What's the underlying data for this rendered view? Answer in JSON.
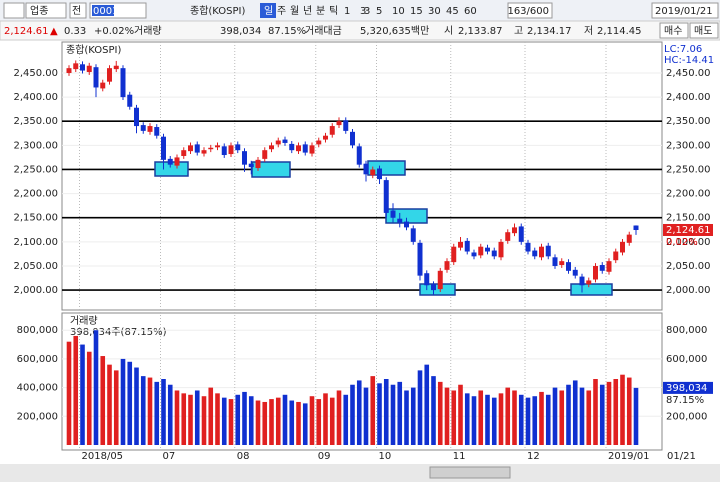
{
  "toolbar": {
    "market": "업종",
    "mode": "전",
    "code": "0001",
    "name": "종합(KOSPI)",
    "periods": [
      "일",
      "주",
      "월",
      "년",
      "분",
      "틱"
    ],
    "intervals": [
      "1",
      "3",
      "5",
      "10",
      "15",
      "30",
      "45",
      "60"
    ],
    "count": "3",
    "range": "163/600",
    "date": "2019/01/21"
  },
  "info": {
    "price": "2,124.61",
    "arrow": "▲",
    "change": "0.33",
    "change_pct": "+0.02%",
    "volume_label": "거래량",
    "volume": "398,034",
    "volume_pct": "87.15%",
    "amount_label": "거래대금",
    "amount": "5,320,635백만",
    "open_label": "시",
    "open": "2,133.87",
    "high_label": "고",
    "high": "2,134.17",
    "low_label": "저",
    "low": "2,114.45",
    "buy": "매수",
    "sell": "매도"
  },
  "chart_data": {
    "type": "candlestick",
    "title": "종합(KOSPI)",
    "lc": "LC:7.06",
    "hc": "HC:-14.41",
    "last_label": "2,124.61",
    "last_change": "0.02%",
    "categories": [
      null,
      null,
      "2018/05",
      null,
      null,
      null,
      null,
      null,
      null,
      null,
      null,
      null,
      null,
      null,
      "07",
      null,
      null,
      null,
      null,
      null,
      null,
      null,
      null,
      null,
      null,
      "08",
      null,
      null,
      null,
      null,
      null,
      null,
      null,
      null,
      null,
      null,
      null,
      "09",
      null,
      null,
      null,
      null,
      null,
      null,
      null,
      null,
      "10",
      null,
      null,
      null,
      null,
      null,
      null,
      null,
      null,
      null,
      null,
      "11",
      null,
      null,
      null,
      null,
      null,
      null,
      null,
      null,
      null,
      null,
      "12",
      null,
      null,
      null,
      null,
      null,
      null,
      null,
      null,
      null,
      null,
      null,
      "2019/01",
      null,
      null,
      null,
      null
    ],
    "open": [
      2450,
      2458,
      2468,
      2452,
      2462,
      2418,
      2432,
      2458,
      2460,
      2405,
      2378,
      2342,
      2328,
      2338,
      2318,
      2272,
      2258,
      2278,
      2288,
      2302,
      2283,
      2292,
      2296,
      2298,
      2282,
      2302,
      2288,
      2262,
      2253,
      2272,
      2292,
      2302,
      2312,
      2303,
      2288,
      2302,
      2283,
      2302,
      2312,
      2322,
      2342,
      2352,
      2328,
      2298,
      2262,
      2238,
      2252,
      2228,
      2165,
      2148,
      2142,
      2128,
      2098,
      2035,
      2012,
      2002,
      2042,
      2058,
      2088,
      2102,
      2078,
      2072,
      2088,
      2082,
      2068,
      2102,
      2118,
      2132,
      2098,
      2082,
      2068,
      2092,
      2068,
      2052,
      2058,
      2042,
      2028,
      2012,
      2022,
      2052,
      2038,
      2062,
      2078,
      2098,
      2133.87
    ],
    "high": [
      2466,
      2476,
      2474,
      2471,
      2468,
      2436,
      2466,
      2475,
      2466,
      2411,
      2384,
      2348,
      2346,
      2344,
      2324,
      2278,
      2281,
      2296,
      2306,
      2308,
      2296,
      2301,
      2306,
      2304,
      2306,
      2308,
      2294,
      2268,
      2276,
      2296,
      2306,
      2316,
      2318,
      2309,
      2306,
      2308,
      2306,
      2316,
      2326,
      2346,
      2358,
      2358,
      2334,
      2304,
      2268,
      2256,
      2258,
      2234,
      2180,
      2160,
      2150,
      2134,
      2104,
      2041,
      2018,
      2046,
      2066,
      2096,
      2110,
      2108,
      2084,
      2096,
      2094,
      2088,
      2106,
      2126,
      2138,
      2138,
      2104,
      2088,
      2096,
      2098,
      2074,
      2066,
      2064,
      2048,
      2034,
      2026,
      2056,
      2058,
      2066,
      2086,
      2106,
      2121,
      2134.17
    ],
    "low": [
      2444,
      2452,
      2449,
      2446,
      2400,
      2412,
      2426,
      2452,
      2394,
      2374,
      2325,
      2324,
      2322,
      2314,
      2250,
      2254,
      2252,
      2272,
      2282,
      2279,
      2277,
      2286,
      2290,
      2274,
      2276,
      2284,
      2245,
      2240,
      2247,
      2266,
      2286,
      2296,
      2299,
      2284,
      2282,
      2279,
      2277,
      2296,
      2306,
      2316,
      2336,
      2324,
      2294,
      2254,
      2225,
      2232,
      2220,
      2150,
      2140,
      2130,
      2124,
      2094,
      2020,
      2000,
      1990,
      1996,
      2036,
      2052,
      2082,
      2074,
      2064,
      2066,
      2074,
      2064,
      2062,
      2096,
      2112,
      2094,
      2074,
      2064,
      2062,
      2064,
      2044,
      2046,
      2034,
      2024,
      1995,
      2006,
      2016,
      2034,
      2032,
      2056,
      2072,
      2092,
      2114.45
    ],
    "close": [
      2460,
      2470,
      2455,
      2465,
      2420,
      2430,
      2460,
      2465,
      2400,
      2380,
      2340,
      2330,
      2340,
      2320,
      2270,
      2260,
      2275,
      2290,
      2300,
      2285,
      2290,
      2295,
      2300,
      2280,
      2300,
      2290,
      2260,
      2255,
      2270,
      2290,
      2300,
      2310,
      2305,
      2290,
      2300,
      2285,
      2300,
      2310,
      2320,
      2340,
      2350,
      2330,
      2300,
      2260,
      2240,
      2250,
      2230,
      2160,
      2150,
      2140,
      2130,
      2100,
      2030,
      2010,
      2000,
      2040,
      2060,
      2090,
      2100,
      2080,
      2070,
      2090,
      2080,
      2070,
      2100,
      2120,
      2130,
      2100,
      2080,
      2070,
      2090,
      2070,
      2050,
      2060,
      2040,
      2030,
      2010,
      2020,
      2050,
      2040,
      2060,
      2080,
      2100,
      2115,
      2124.61
    ],
    "ylim": [
      1965,
      2508
    ],
    "yticks": [
      {
        "value": 2000,
        "label": "2,000.00"
      },
      {
        "value": 2050,
        "label": "2,050.00"
      },
      {
        "value": 2100,
        "label": "2,100.00"
      },
      {
        "value": 2150,
        "label": "2,150.00"
      },
      {
        "value": 2200,
        "label": "2,200.00"
      },
      {
        "value": 2250,
        "label": "2,250.00"
      },
      {
        "value": 2300,
        "label": "2,300.00"
      },
      {
        "value": 2350,
        "label": "2,350.00"
      },
      {
        "value": 2400,
        "label": "2,400.00"
      },
      {
        "value": 2450,
        "label": "2,450.00"
      }
    ],
    "reference_lines": [
      2000,
      2150,
      2250,
      2350
    ],
    "up_color": "#e02020",
    "down_color": "#1030d0",
    "volume_title": "거래량",
    "volume_caption": "398,034주(87.15%)",
    "volume_label": "398,034",
    "volume_pct": "87.15%",
    "end_date": "01/21",
    "volume": [
      720000,
      760000,
      700000,
      650000,
      800000,
      620000,
      560000,
      520000,
      600000,
      580000,
      540000,
      480000,
      470000,
      440000,
      460000,
      420000,
      380000,
      360000,
      350000,
      380000,
      340000,
      400000,
      360000,
      330000,
      320000,
      350000,
      370000,
      340000,
      310000,
      300000,
      320000,
      330000,
      350000,
      310000,
      300000,
      290000,
      340000,
      320000,
      360000,
      330000,
      380000,
      350000,
      420000,
      450000,
      400000,
      480000,
      430000,
      460000,
      420000,
      440000,
      380000,
      400000,
      520000,
      560000,
      480000,
      440000,
      400000,
      380000,
      420000,
      360000,
      340000,
      380000,
      350000,
      330000,
      360000,
      400000,
      380000,
      350000,
      330000,
      340000,
      370000,
      350000,
      400000,
      380000,
      420000,
      450000,
      400000,
      380000,
      460000,
      420000,
      440000,
      460000,
      490000,
      470000,
      398034
    ],
    "vlim": [
      0,
      920000
    ],
    "vticks": [
      {
        "value": 200000,
        "label": "200,000"
      },
      {
        "value": 400000,
        "label": "400,000"
      },
      {
        "value": 600000,
        "label": "600,000"
      },
      {
        "value": 800000,
        "label": "800,000"
      }
    ]
  }
}
